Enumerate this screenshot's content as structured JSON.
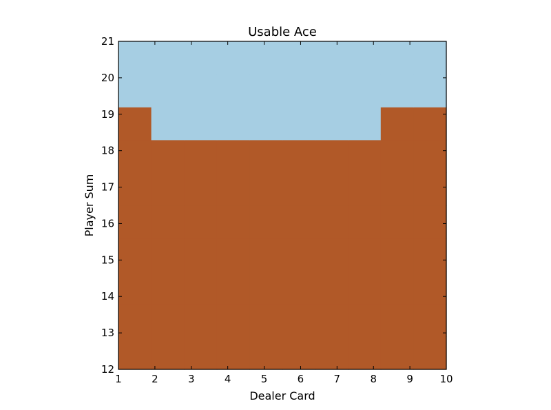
{
  "chart_data": {
    "type": "heatmap",
    "title": "Usable Ace",
    "xlabel": "Dealer Card",
    "ylabel": "Player Sum",
    "xlim": [
      1,
      10
    ],
    "ylim": [
      12,
      21
    ],
    "xticks": [
      "1",
      "2",
      "3",
      "4",
      "5",
      "6",
      "7",
      "8",
      "9",
      "10"
    ],
    "yticks": [
      "12",
      "13",
      "14",
      "15",
      "16",
      "17",
      "18",
      "19",
      "20",
      "21"
    ],
    "x": [
      1,
      2,
      3,
      4,
      5,
      6,
      7,
      8,
      9,
      10
    ],
    "y": [
      12,
      13,
      14,
      15,
      16,
      17,
      18,
      19,
      20,
      21
    ],
    "values": [
      [
        0,
        0,
        0,
        0,
        0,
        0,
        0,
        0,
        0,
        0
      ],
      [
        0,
        0,
        0,
        0,
        0,
        0,
        0,
        0,
        0,
        0
      ],
      [
        0,
        0,
        0,
        0,
        0,
        0,
        0,
        0,
        0,
        0
      ],
      [
        0,
        0,
        0,
        0,
        0,
        0,
        0,
        0,
        0,
        0
      ],
      [
        0,
        0,
        0,
        0,
        0,
        0,
        0,
        0,
        0,
        0
      ],
      [
        0,
        0,
        0,
        0,
        0,
        0,
        0,
        0,
        0,
        0
      ],
      [
        0,
        0,
        0,
        0,
        0,
        0,
        0,
        0,
        0,
        0
      ],
      [
        0,
        1,
        1,
        1,
        1,
        1,
        1,
        1,
        0,
        0
      ],
      [
        1,
        1,
        1,
        1,
        1,
        1,
        1,
        1,
        1,
        1
      ],
      [
        1,
        1,
        1,
        1,
        1,
        1,
        1,
        1,
        1,
        1
      ]
    ],
    "colors": {
      "0": "#b15928",
      "1": "#a6cee3"
    },
    "grid": false,
    "legend": "none"
  }
}
